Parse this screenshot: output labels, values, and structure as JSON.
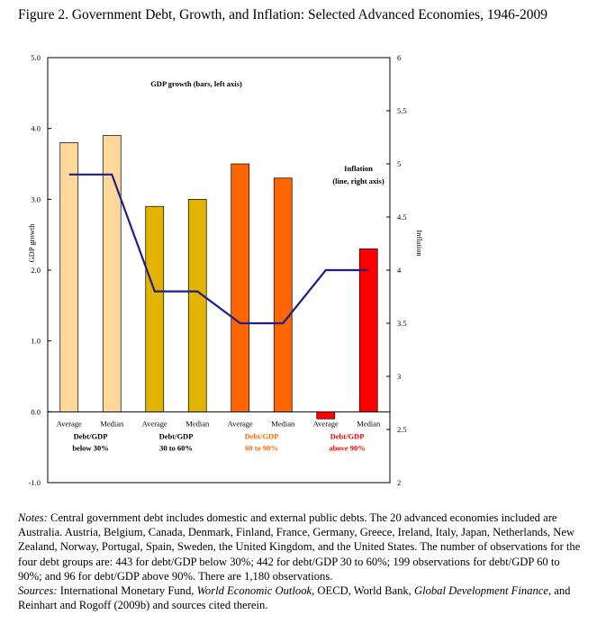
{
  "title": "Figure 2. Government Debt, Growth, and Inflation:  Selected Advanced Economies, 1946-2009",
  "chart_data": {
    "type": "bar",
    "categories": [
      "Average",
      "Median",
      "Average",
      "Median",
      "Average",
      "Median",
      "Average",
      "Median"
    ],
    "groups": [
      {
        "line1": "Debt/GDP",
        "line2": "below 30%",
        "color": "#000000"
      },
      {
        "line1": "Debt/GDP",
        "line2": "30 to 60%",
        "color": "#000000"
      },
      {
        "line1": "Debt/GDP",
        "line2": "60 to 90%",
        "color": "#ff6a00"
      },
      {
        "line1": "Debt/GDP",
        "line2": "above 90%",
        "color": "#ff0000"
      }
    ],
    "series": [
      {
        "name": "GDP growth (bars, left axis)",
        "axis": "left",
        "values": [
          3.8,
          3.9,
          2.9,
          3.0,
          3.5,
          3.3,
          -0.1,
          2.3
        ]
      },
      {
        "name": "Inflation (line, right axis)",
        "axis": "right",
        "values": [
          4.9,
          4.9,
          3.8,
          3.8,
          3.5,
          3.5,
          4.0,
          4.0
        ]
      }
    ],
    "bar_colors": [
      "#fdd89a",
      "#fdd89a",
      "#e2b400",
      "#e2b400",
      "#ff6600",
      "#ff6600",
      "#ff0000",
      "#ff0000"
    ],
    "line_color": "#1f1f8c",
    "ylabel": "GDP growth",
    "y2label": "Inflation",
    "ylim": [
      -1.0,
      5.0
    ],
    "y2lim": [
      2,
      6
    ],
    "yticks": [
      "5.0",
      "4.0",
      "3.0",
      "2.0",
      "1.0",
      "0.0",
      "-1.0"
    ],
    "y2ticks": [
      "6",
      "5.5",
      "5",
      "4.5",
      "4",
      "3.5",
      "3",
      "2.5",
      "2"
    ],
    "annotations": {
      "bars": "GDP growth (bars, left axis)",
      "line1": "Inflation",
      "line2": "(line, right axis)"
    }
  },
  "notes": {
    "notes_label": "Notes:",
    "notes_text": " Central government debt includes domestic and external public debts. The 20 advanced economies included are Australia. Austria, Belgium, Canada, Denmark, Finland, France, Germany, Greece, Ireland, Italy, Japan, Netherlands, New Zealand, Norway, Portugal, Spain, Sweden, the United Kingdom, and the United States.  The number of observations for the four debt groups are:  443 for debt/GDP below 30%; 442 for debt/GDP 30 to 60%; 199 observations for debt/GDP 60 to 90%; and 96 for debt/GDP above 90%.  There are 1,180 observations.",
    "sources_label": "Sources:",
    "sources_1": " International Monetary Fund, ",
    "sources_2": "World Economic Outlook",
    "sources_3": ", OECD, World Bank, ",
    "sources_4": "Global Development Finance,",
    "sources_5": " and  Reinhart and Rogoff (2009b) and sources cited therein."
  }
}
